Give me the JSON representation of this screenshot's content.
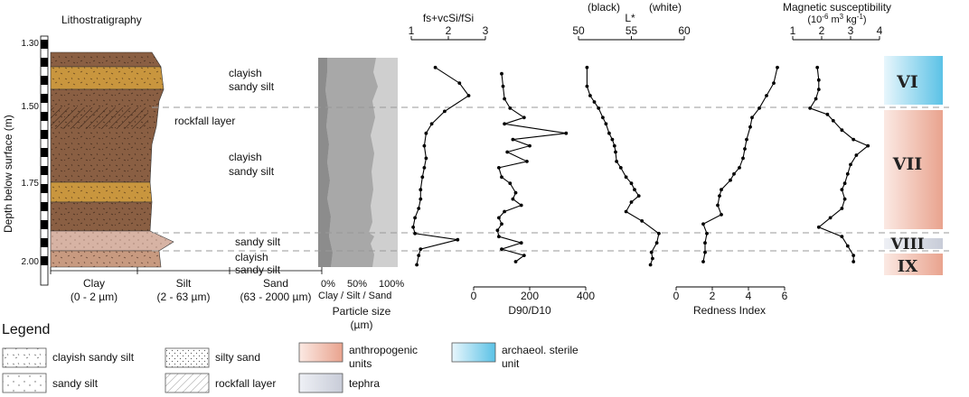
{
  "lithostratigraphy": {
    "title": "Lithostratigraphy",
    "depth_axis_label": "Depth below surface (m)",
    "depth_ticks": [
      "1.30",
      "1.50",
      "1.75",
      "2.00"
    ],
    "grain_columns": [
      {
        "name": "Clay",
        "range": "(0 - 2 µm)"
      },
      {
        "name": "Silt",
        "range": "(2 - 63 µm)"
      },
      {
        "name": "Sand",
        "range": "(63 - 2000 µm)"
      }
    ],
    "labels": {
      "upper_unit": [
        "clayish",
        "sandy silt"
      ],
      "rockfall": "rockfall layer",
      "middle_unit": [
        "clayish",
        "sandy silt"
      ],
      "sandy_silt": "sandy silt",
      "lower_unit": [
        "clayish",
        "sandy silt"
      ]
    }
  },
  "particle_size": {
    "ticks": [
      "0%",
      "50%",
      "100%"
    ],
    "sublabel": "Clay / Silt  / Sand",
    "title": "Particle size",
    "unit": "(µm)"
  },
  "chart_data": [
    {
      "type": "line",
      "series_label": "fs+vcSi/fSi",
      "xlim": [
        1,
        3
      ],
      "x_ticks": [
        "1",
        "2",
        "3"
      ],
      "depth_m": [
        1.38,
        1.43,
        1.47,
        1.52,
        1.56,
        1.59,
        1.63,
        1.67,
        1.7,
        1.73,
        1.77,
        1.8,
        1.83,
        1.86,
        1.89,
        1.91,
        1.93,
        1.96,
        1.98,
        2.01
      ],
      "values": [
        1.65,
        2.3,
        2.55,
        1.9,
        1.55,
        1.4,
        1.35,
        1.4,
        1.35,
        1.3,
        1.25,
        1.25,
        1.2,
        1.1,
        1.05,
        1.1,
        2.25,
        1.25,
        1.2,
        1.15
      ]
    },
    {
      "type": "line",
      "series_label": "D90/D10",
      "xlim": [
        0,
        400
      ],
      "x_ticks": [
        "0",
        "200",
        "400"
      ],
      "depth_m": [
        1.4,
        1.44,
        1.48,
        1.51,
        1.54,
        1.56,
        1.59,
        1.61,
        1.63,
        1.65,
        1.68,
        1.7,
        1.73,
        1.75,
        1.78,
        1.8,
        1.82,
        1.84,
        1.86,
        1.88,
        1.9,
        1.92,
        1.94,
        1.96,
        1.98,
        2.0
      ],
      "values": [
        100,
        105,
        110,
        130,
        180,
        110,
        330,
        140,
        200,
        120,
        190,
        90,
        100,
        130,
        150,
        140,
        170,
        110,
        90,
        100,
        85,
        90,
        170,
        100,
        180,
        150
      ]
    },
    {
      "type": "line",
      "series_label": "L*",
      "axis_annotations": [
        "(black)",
        "(white)"
      ],
      "xlim": [
        50,
        60
      ],
      "x_ticks": [
        "50",
        "55",
        "60"
      ],
      "depth_m": [
        1.38,
        1.44,
        1.47,
        1.49,
        1.51,
        1.54,
        1.56,
        1.59,
        1.61,
        1.63,
        1.65,
        1.68,
        1.7,
        1.73,
        1.75,
        1.77,
        1.79,
        1.81,
        1.84,
        1.87,
        1.91,
        1.94,
        1.97,
        1.99,
        2.01
      ],
      "values": [
        50.8,
        50.8,
        51.1,
        51.5,
        51.9,
        52.3,
        52.6,
        52.9,
        53.2,
        53.4,
        53.5,
        53.6,
        54.0,
        54.5,
        55.0,
        55.3,
        55.7,
        55.0,
        54.5,
        56.0,
        57.6,
        57.4,
        56.9,
        57.0,
        56.8
      ]
    },
    {
      "type": "line",
      "series_label": "Redness Index",
      "xlim": [
        0,
        6
      ],
      "x_ticks": [
        "0",
        "2",
        "4",
        "6"
      ],
      "depth_m": [
        1.38,
        1.43,
        1.47,
        1.51,
        1.54,
        1.57,
        1.61,
        1.64,
        1.67,
        1.7,
        1.72,
        1.74,
        1.77,
        1.79,
        1.82,
        1.85,
        1.88,
        1.91,
        1.94,
        1.97,
        2.0
      ],
      "values": [
        5.6,
        5.4,
        5.0,
        4.6,
        4.2,
        4.1,
        3.9,
        3.8,
        3.7,
        3.5,
        3.2,
        3.0,
        2.5,
        2.4,
        2.3,
        2.5,
        1.5,
        1.7,
        1.6,
        1.6,
        1.5
      ]
    },
    {
      "type": "line",
      "series_label": "Magnetic susceptibility",
      "unit": "(10-6 m3 kg-1)",
      "xlim": [
        1,
        4
      ],
      "x_ticks": [
        "1",
        "2",
        "3",
        "4"
      ],
      "depth_m": [
        1.38,
        1.42,
        1.45,
        1.48,
        1.51,
        1.53,
        1.55,
        1.58,
        1.61,
        1.63,
        1.66,
        1.69,
        1.72,
        1.75,
        1.77,
        1.8,
        1.83,
        1.86,
        1.89,
        1.92,
        1.95,
        1.98,
        2.0
      ],
      "values": [
        1.85,
        1.9,
        1.9,
        1.8,
        1.6,
        2.2,
        2.4,
        2.7,
        3.1,
        3.6,
        3.2,
        3.0,
        2.9,
        2.8,
        2.7,
        2.8,
        2.7,
        2.3,
        1.9,
        2.7,
        2.9,
        3.1,
        3.1
      ]
    }
  ],
  "units_column": [
    {
      "label": "VI",
      "type": "archaeol. sterile unit"
    },
    {
      "label": "VII",
      "type": "anthropogenic units"
    },
    {
      "label": "VIII",
      "type": "tephra"
    },
    {
      "label": "IX",
      "type": "anthropogenic units"
    }
  ],
  "legend": {
    "title": "Legend",
    "items": [
      {
        "label": "clayish sandy silt",
        "swatch": "stipple"
      },
      {
        "label": "sandy silt",
        "swatch": "dots"
      },
      {
        "label": "silty sand",
        "swatch": "dense-dots"
      },
      {
        "label": "rockfall layer",
        "swatch": "hatch"
      },
      {
        "label": "anthropogenic units",
        "lines": [
          "anthropogenic",
          "units"
        ],
        "swatch": "anthropogenic"
      },
      {
        "label": "tephra",
        "swatch": "tephra"
      },
      {
        "label": "archaeol. sterile unit",
        "lines": [
          "archaeol. sterile",
          "unit"
        ],
        "swatch": "sterile"
      }
    ]
  },
  "colors": {
    "clayish_sandy_silt": "#8a5f43",
    "sandy_silt_band": "#c9963e",
    "tephra_band": "#d7b3a4",
    "lower_unit": "#c89a80",
    "anthropogenic": "#e9a38e",
    "sterile": "#5bc2e6",
    "tephra": "#c8ccd8",
    "ps_clay": "#8c8c8c",
    "ps_silt": "#a8a8a8",
    "ps_sand": "#cfcfcf"
  }
}
